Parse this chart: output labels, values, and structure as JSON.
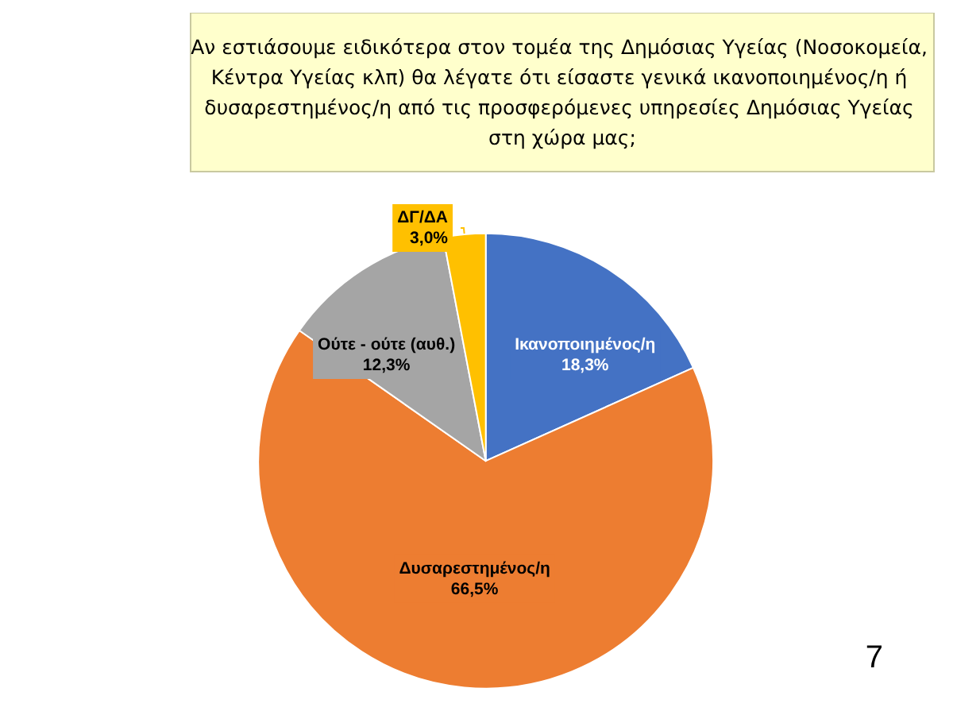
{
  "chart_data": {
    "type": "pie",
    "title": "Αν εστιάσουμε ειδικότερα στον τομέα της Δημόσιας Υγείας (Νοσοκομεία, Κέντρα Υγείας κλπ) θα λέγατε ότι είσαστε γενικά ικανοποιημένος/η ή δυσαρεστημένος/η από τις προσφερόμενες υπηρεσίες Δημόσιας Υγείας στη χώρα μας;",
    "categories": [
      "Ικανοποιημένος/η",
      "Δυσαρεστημένος/η",
      "Ούτε - ούτε (αυθ.)",
      "ΔΓ/ΔΑ"
    ],
    "values": [
      18.3,
      66.5,
      12.3,
      3.0
    ],
    "value_labels": [
      "18,3%",
      "66,5%",
      "12,3%",
      "3,0%"
    ],
    "colors": [
      "#4472c4",
      "#ed7d31",
      "#a5a5a5",
      "#ffc000"
    ],
    "annotations": [
      "7"
    ]
  }
}
